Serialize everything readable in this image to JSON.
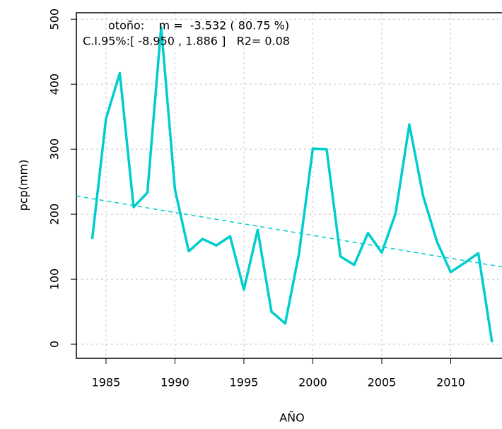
{
  "chart_data": {
    "type": "line",
    "x": [
      1984,
      1985,
      1986,
      1987,
      1988,
      1989,
      1990,
      1991,
      1992,
      1993,
      1994,
      1995,
      1996,
      1997,
      1998,
      1999,
      2000,
      2001,
      2002,
      2003,
      2004,
      2005,
      2006,
      2007,
      2008,
      2009,
      2010,
      2011,
      2012,
      2013
    ],
    "values": [
      162,
      347,
      417,
      211,
      233,
      488,
      238,
      143,
      162,
      152,
      166,
      84,
      176,
      50,
      32,
      140,
      301,
      300,
      135,
      122,
      171,
      141,
      201,
      338,
      228,
      158,
      111,
      125,
      140,
      3
    ],
    "color": "#00CDCD",
    "trend_line": {
      "x": [
        1982.85,
        2013.72
      ],
      "values": [
        228,
        119
      ],
      "color": "#00CDCD"
    },
    "annotations": [
      "otoño:    m =  -3.532 ( 80.75 %)",
      "C.I.95%:[ -8.950 , 1.886 ]   R2= 0.08"
    ],
    "xlabel": "AÑO",
    "ylabel": "pcp(mm)",
    "xlim": [
      1982.85,
      2013.72
    ],
    "ylim": [
      -21.7,
      510
    ],
    "xticks": [
      1985,
      1990,
      1995,
      2000,
      2005,
      2010
    ],
    "yticks": [
      0,
      100,
      200,
      300,
      400,
      500
    ],
    "grid": true
  }
}
